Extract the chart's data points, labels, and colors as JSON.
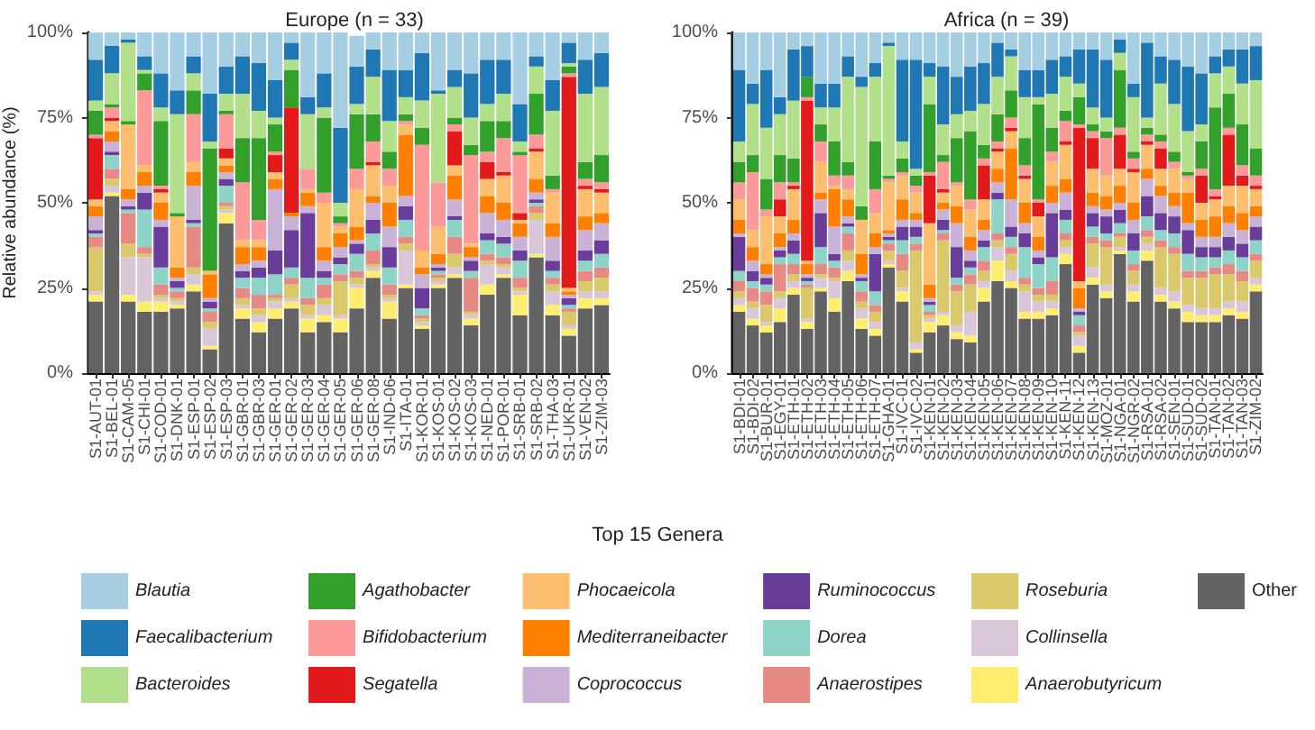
{
  "chart_data": [
    {
      "type": "bar",
      "title": "Europe (n = 33)",
      "ylabel": "Relative abundance (%)",
      "legend_title": "Top 15 Genera",
      "stacked": true,
      "legend": "bottom",
      "ylim": [
        0,
        100
      ],
      "yticks": [
        {
          "value": 0,
          "label": "0%"
        },
        {
          "value": 25,
          "label": "25%"
        },
        {
          "value": 50,
          "label": "50%"
        },
        {
          "value": 75,
          "label": "75%"
        },
        {
          "value": 100,
          "label": "100%"
        }
      ],
      "categories": [
        "S1-AUT-01",
        "S1-BEL-01",
        "S1-CAM-05",
        "S1-CHI-01",
        "S1-COD-01",
        "S1-DNK-01",
        "S1-ESP-01",
        "S1-ESP-02",
        "S1-ESP-03",
        "S1-GBR-01",
        "S1-GBR-03",
        "S1-GER-01",
        "S1-GER-02",
        "S1-GER-03",
        "S1-GER-04",
        "S1-GER-05",
        "S1-GER-06",
        "S1-GER-08",
        "S1-IND-06",
        "S1-ITA-01",
        "S1-KOR-01",
        "S1-KOS-01",
        "S1-KOS-02",
        "S1-KOS-03",
        "S1-NED-01",
        "S1-POR-01",
        "S1-SRB-01",
        "S1-SRB-02",
        "S1-THA-03",
        "S1-UKR-01",
        "S1-VEN-02",
        "S1-ZIM-03"
      ],
      "series": [
        {
          "name": "Other",
          "color": "#636363",
          "values": [
            21,
            52,
            21,
            18,
            18,
            19,
            24,
            7,
            44,
            16,
            12,
            16,
            19,
            12,
            15,
            12,
            19,
            28,
            16,
            25,
            13,
            25,
            28,
            14,
            23,
            28,
            17,
            34,
            17,
            11,
            19,
            20
          ]
        },
        {
          "name": "Anaerobutyricum",
          "color": "#ffed6f",
          "values": [
            2,
            1,
            2,
            3,
            3,
            1,
            2,
            1,
            3,
            3,
            3,
            3,
            2,
            4,
            2,
            4,
            6,
            2,
            5,
            1,
            1,
            1,
            1,
            2,
            3,
            1,
            6,
            1,
            3,
            2,
            3,
            2
          ]
        },
        {
          "name": "Collinsella",
          "color": "#d9c6d9",
          "values": [
            1,
            2,
            11,
            13,
            1,
            1,
            3,
            5,
            1,
            1,
            2,
            2,
            1,
            1,
            3,
            1,
            1,
            1,
            1,
            10,
            1,
            1,
            2,
            1,
            6,
            2,
            1,
            10,
            4,
            1,
            2,
            2
          ]
        },
        {
          "name": "Roseburia",
          "color": "#d9c96b",
          "values": [
            13,
            2,
            4,
            1,
            1,
            1,
            2,
            2,
            1,
            2,
            2,
            1,
            4,
            3,
            2,
            10,
            2,
            1,
            1,
            2,
            1,
            1,
            4,
            1,
            1,
            1,
            1,
            2,
            2,
            4,
            3,
            4
          ]
        },
        {
          "name": "Anaerostipes",
          "color": "#e78a83",
          "values": [
            3,
            3,
            9,
            2,
            3,
            2,
            12,
            3,
            1,
            3,
            4,
            1,
            2,
            2,
            4,
            2,
            2,
            4,
            3,
            2,
            1,
            1,
            5,
            10,
            2,
            2,
            3,
            2,
            2,
            1,
            3,
            3
          ]
        },
        {
          "name": "Dorea",
          "color": "#8dd3c7",
          "values": [
            1,
            4,
            1,
            11,
            5,
            1,
            1,
            1,
            5,
            3,
            5,
            6,
            3,
            6,
            2,
            3,
            5,
            5,
            5,
            5,
            2,
            1,
            5,
            2,
            4,
            4,
            5,
            1,
            2,
            1,
            3,
            4
          ]
        },
        {
          "name": "Ruminococcus",
          "color": "#6a3d9a",
          "values": [
            1,
            1,
            1,
            5,
            12,
            2,
            1,
            2,
            2,
            2,
            3,
            7,
            11,
            19,
            2,
            2,
            3,
            4,
            6,
            4,
            6,
            1,
            1,
            3,
            2,
            2,
            3,
            1,
            3,
            2,
            3,
            4
          ]
        },
        {
          "name": "Coprococcus",
          "color": "#cab2d6",
          "values": [
            4,
            3,
            2,
            2,
            2,
            1,
            10,
            1,
            2,
            2,
            2,
            18,
            4,
            2,
            3,
            3,
            1,
            5,
            6,
            3,
            4,
            1,
            5,
            1,
            6,
            5,
            4,
            2,
            7,
            1,
            6,
            5
          ]
        },
        {
          "name": "Mediterraneibacter",
          "color": "#ff7f00",
          "values": [
            3,
            3,
            3,
            4,
            5,
            3,
            4,
            7,
            2,
            5,
            4,
            3,
            1,
            4,
            4,
            4,
            4,
            2,
            7,
            18,
            2,
            3,
            7,
            3,
            5,
            5,
            4,
            4,
            4,
            1,
            4,
            3
          ]
        },
        {
          "name": "Phocaeicola",
          "color": "#fdbf6f",
          "values": [
            2,
            3,
            19,
            2,
            3,
            15,
            3,
            1,
            2,
            2,
            2,
            2,
            0,
            1,
            13,
            2,
            11,
            9,
            5,
            3,
            5,
            8,
            3,
            1,
            5,
            8,
            1,
            8,
            9,
            1,
            8,
            6
          ]
        },
        {
          "name": "Segatella",
          "color": "#e31a1c",
          "values": [
            18,
            1,
            0,
            0,
            1,
            0,
            0,
            0,
            3,
            0,
            0,
            5,
            31,
            0,
            0,
            0,
            0,
            1,
            0,
            0,
            0,
            0,
            10,
            0,
            5,
            1,
            2,
            1,
            0,
            62,
            1,
            1
          ]
        },
        {
          "name": "Bifidobacterium",
          "color": "#fb9a99",
          "values": [
            1,
            3,
            0,
            22,
            1,
            0,
            14,
            0,
            10,
            17,
            6,
            1,
            0,
            6,
            3,
            1,
            6,
            6,
            5,
            1,
            31,
            13,
            2,
            26,
            3,
            10,
            17,
            4,
            1,
            1,
            2,
            2
          ]
        },
        {
          "name": "Agathobacter",
          "color": "#33a02c",
          "values": [
            7,
            1,
            1,
            5,
            19,
            1,
            7,
            36,
            1,
            13,
            24,
            8,
            11,
            0,
            22,
            2,
            16,
            8,
            5,
            2,
            5,
            0,
            2,
            3,
            9,
            5,
            1,
            12,
            4,
            2,
            5,
            8
          ]
        },
        {
          "name": "Bacteroides",
          "color": "#b2df8a",
          "values": [
            3,
            9,
            23,
            1,
            4,
            29,
            5,
            2,
            5,
            13,
            8,
            2,
            3,
            16,
            3,
            4,
            3,
            11,
            9,
            5,
            8,
            26,
            9,
            8,
            5,
            8,
            3,
            8,
            19,
            1,
            20,
            20
          ]
        },
        {
          "name": "Faecalibacterium",
          "color": "#1f78b4",
          "values": [
            12,
            8,
            1,
            4,
            10,
            7,
            5,
            14,
            8,
            11,
            14,
            11,
            5,
            5,
            10,
            22,
            11,
            8,
            15,
            8,
            14,
            1,
            5,
            13,
            13,
            10,
            11,
            3,
            9,
            6,
            10,
            10
          ]
        },
        {
          "name": "Blautia",
          "color": "#a6cee3",
          "values": [
            8,
            4,
            2,
            7,
            12,
            17,
            7,
            18,
            10,
            7,
            9,
            14,
            3,
            19,
            12,
            28,
            9,
            5,
            11,
            11,
            6,
            17,
            11,
            12,
            8,
            8,
            21,
            7,
            14,
            3,
            8,
            6
          ]
        }
      ]
    },
    {
      "type": "bar",
      "title": "Africa (n = 39)",
      "stacked": true,
      "ylim": [
        0,
        100
      ],
      "yticks": [
        {
          "value": 0,
          "label": "0%"
        },
        {
          "value": 25,
          "label": "25%"
        },
        {
          "value": 50,
          "label": "50%"
        },
        {
          "value": 75,
          "label": "75%"
        },
        {
          "value": 100,
          "label": "100%"
        }
      ],
      "categories": [
        "S1-BDI-01",
        "S1-BDI-02",
        "S1-BUR-01",
        "S1-EGY-01",
        "S1-ETH-01",
        "S1-ETH-02",
        "S1-ETH-03",
        "S1-ETH-04",
        "S1-ETH-05",
        "S1-ETH-06",
        "S1-ETH-07",
        "S1-GHA-01",
        "S1-IVC-01",
        "S1-IVC-02",
        "S1-KEN-01",
        "S1-KEN-02",
        "S1-KEN-03",
        "S1-KEN-04",
        "S1-KEN-05",
        "S1-KEN-06",
        "S1-KEN-07",
        "S1-KEN-08",
        "S1-KEN-09",
        "S1-KEN-10",
        "S1-KEN-11",
        "S1-KEN-12",
        "S1-KEN-13",
        "S1-MOZ-01",
        "S1-NGA-01",
        "S1-NGR-02",
        "S1-RSA-01",
        "S1-RSA-02",
        "S1-SEN-01",
        "S1-SUD-01",
        "S1-SUD-02",
        "S1-TAN-01",
        "S1-TAN-02",
        "S1-TAN-03",
        "S1-ZIM-02"
      ],
      "series": [
        {
          "color": "#636363",
          "values": [
            18,
            14,
            12,
            15,
            23,
            13,
            24,
            18,
            27,
            13,
            11,
            31,
            21,
            6,
            12,
            14,
            10,
            9,
            21,
            27,
            25,
            16,
            16,
            17,
            32,
            6,
            26,
            22,
            35,
            21,
            33,
            21,
            19,
            15,
            15,
            15,
            17,
            16,
            24
          ]
        },
        {
          "color": "#ffed6f",
          "values": [
            2,
            2,
            2,
            4,
            2,
            2,
            1,
            4,
            3,
            3,
            2,
            1,
            3,
            1,
            3,
            3,
            2,
            2,
            4,
            6,
            2,
            2,
            2,
            2,
            3,
            2,
            2,
            2,
            1,
            3,
            3,
            2,
            2,
            3,
            2,
            2,
            2,
            2,
            2
          ]
        },
        {
          "color": "#d9c6d9",
          "values": [
            2,
            3,
            1,
            3,
            2,
            1,
            3,
            5,
            3,
            3,
            2,
            1,
            1,
            2,
            1,
            1,
            2,
            7,
            2,
            4,
            3,
            6,
            3,
            2,
            2,
            3,
            3,
            2,
            1,
            2,
            2,
            2,
            3,
            2,
            2,
            2,
            2,
            3,
            2
          ]
        },
        {
          "color": "#d9c96b",
          "values": [
            2,
            2,
            5,
            2,
            2,
            9,
            1,
            1,
            3,
            2,
            3,
            3,
            5,
            27,
            1,
            21,
            10,
            8,
            3,
            2,
            5,
            2,
            2,
            2,
            2,
            1,
            7,
            11,
            3,
            4,
            2,
            12,
            11,
            8,
            9,
            10,
            8,
            6,
            5
          ]
        },
        {
          "color": "#e78a83",
          "values": [
            3,
            4,
            4,
            8,
            3,
            1,
            3,
            3,
            5,
            3,
            2,
            2,
            5,
            2,
            1,
            2,
            2,
            3,
            3,
            2,
            2,
            2,
            2,
            4,
            2,
            2,
            2,
            2,
            1,
            2,
            2,
            2,
            2,
            2,
            2,
            2,
            3,
            3,
            2
          ]
        },
        {
          "color": "#8dd3c7",
          "values": [
            3,
            2,
            2,
            2,
            3,
            1,
            5,
            2,
            2,
            3,
            4,
            1,
            4,
            2,
            2,
            1,
            2,
            2,
            4,
            10,
            3,
            9,
            7,
            7,
            4,
            3,
            3,
            2,
            3,
            4,
            4,
            3,
            4,
            5,
            4,
            3,
            4,
            4,
            4
          ]
        },
        {
          "color": "#6a3d9a",
          "values": [
            10,
            3,
            2,
            2,
            4,
            1,
            10,
            2,
            1,
            1,
            11,
            1,
            4,
            3,
            1,
            3,
            9,
            2,
            2,
            2,
            3,
            4,
            2,
            13,
            3,
            1,
            4,
            5,
            4,
            5,
            6,
            5,
            5,
            7,
            3,
            3,
            4,
            4,
            4
          ]
        },
        {
          "color": "#cab2d6",
          "values": [
            1,
            3,
            1,
            1,
            2,
            1,
            4,
            8,
            2,
            1,
            2,
            1,
            2,
            2,
            1,
            3,
            7,
            3,
            3,
            3,
            8,
            3,
            2,
            3,
            5,
            1,
            2,
            2,
            2,
            4,
            5,
            5,
            3,
            2,
            3,
            3,
            4,
            4,
            3
          ]
        },
        {
          "color": "#ff7f00",
          "values": [
            4,
            4,
            3,
            4,
            4,
            3,
            2,
            11,
            5,
            6,
            4,
            1,
            6,
            2,
            4,
            2,
            5,
            4,
            3,
            4,
            15,
            6,
            4,
            5,
            4,
            6,
            4,
            4,
            5,
            5,
            3,
            3,
            4,
            9,
            5,
            6,
            5,
            5,
            3
          ]
        },
        {
          "color": "#fdbf6f",
          "values": [
            6,
            5,
            14,
            5,
            9,
            1,
            9,
            1,
            3,
            10,
            6,
            14,
            7,
            6,
            18,
            3,
            6,
            8,
            6,
            5,
            5,
            7,
            6,
            7,
            10,
            2,
            7,
            6,
            5,
            9,
            7,
            5,
            7,
            4,
            5,
            5,
            6,
            8,
            5
          ]
        },
        {
          "color": "#e31a1c",
          "values": [
            0,
            0,
            0,
            5,
            1,
            47,
            0,
            0,
            0,
            0,
            0,
            0,
            0,
            0,
            14,
            1,
            0,
            0,
            10,
            1,
            1,
            1,
            4,
            0,
            1,
            45,
            9,
            0,
            10,
            1,
            1,
            6,
            0,
            0,
            8,
            1,
            15,
            3,
            1
          ]
        },
        {
          "color": "#fb9a99",
          "values": [
            5,
            17,
            2,
            5,
            1,
            1,
            6,
            3,
            4,
            0,
            7,
            1,
            1,
            2,
            1,
            8,
            1,
            3,
            2,
            2,
            3,
            3,
            1,
            3,
            6,
            1,
            2,
            11,
            2,
            3,
            2,
            2,
            2,
            1,
            2,
            2,
            2,
            3,
            3
          ]
        },
        {
          "color": "#33a02c",
          "values": [
            6,
            5,
            9,
            8,
            7,
            6,
            5,
            10,
            4,
            4,
            14,
            1,
            4,
            3,
            20,
            2,
            13,
            20,
            4,
            8,
            8,
            8,
            28,
            7,
            3,
            8,
            2,
            2,
            17,
            2,
            2,
            2,
            3,
            1,
            8,
            24,
            10,
            12,
            8
          ]
        },
        {
          "color": "#b2df8a",
          "values": [
            6,
            15,
            15,
            12,
            17,
            0,
            5,
            10,
            25,
            35,
            19,
            38,
            5,
            2,
            8,
            9,
            7,
            6,
            12,
            11,
            10,
            12,
            2,
            10,
            10,
            4,
            5,
            4,
            5,
            16,
            3,
            15,
            14,
            12,
            5,
            10,
            8,
            12,
            20
          ]
        },
        {
          "color": "#1f78b4",
          "values": [
            21,
            6,
            17,
            5,
            15,
            9,
            7,
            7,
            6,
            3,
            4,
            1,
            24,
            32,
            4,
            17,
            11,
            13,
            12,
            10,
            2,
            8,
            8,
            10,
            6,
            10,
            17,
            17,
            4,
            4,
            22,
            8,
            13,
            19,
            15,
            5,
            5,
            10,
            10
          ]
        },
        {
          "color": "#a6cee3",
          "values": [
            11,
            15,
            11,
            19,
            5,
            4,
            15,
            15,
            7,
            13,
            9,
            3,
            8,
            8,
            9,
            10,
            13,
            10,
            9,
            3,
            5,
            11,
            11,
            8,
            7,
            5,
            5,
            8,
            2,
            15,
            3,
            7,
            8,
            10,
            12,
            7,
            5,
            5,
            4
          ]
        }
      ]
    }
  ]
}
